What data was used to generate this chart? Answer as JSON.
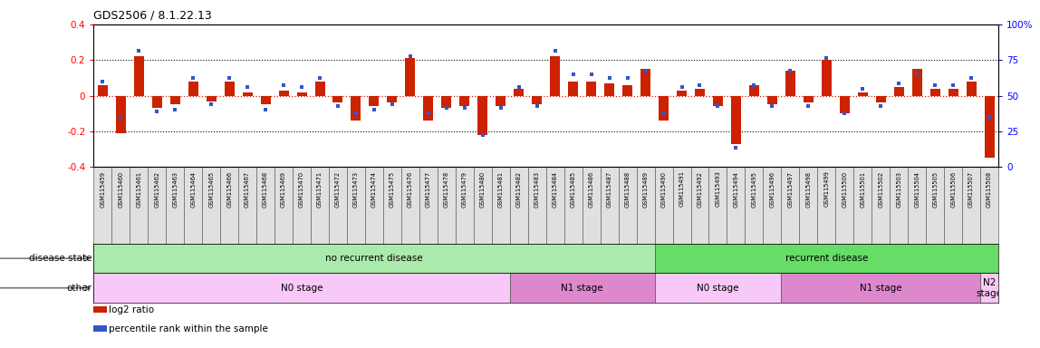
{
  "title": "GDS2506 / 8.1.22.13",
  "samples": [
    "GSM115459",
    "GSM115460",
    "GSM115461",
    "GSM115462",
    "GSM115463",
    "GSM115464",
    "GSM115465",
    "GSM115466",
    "GSM115467",
    "GSM115468",
    "GSM115469",
    "GSM115470",
    "GSM115471",
    "GSM115472",
    "GSM115473",
    "GSM115474",
    "GSM115475",
    "GSM115476",
    "GSM115477",
    "GSM115478",
    "GSM115479",
    "GSM115480",
    "GSM115481",
    "GSM115482",
    "GSM115483",
    "GSM115484",
    "GSM115485",
    "GSM115486",
    "GSM115487",
    "GSM115488",
    "GSM115489",
    "GSM115490",
    "GSM115491",
    "GSM115492",
    "GSM115493",
    "GSM115494",
    "GSM115495",
    "GSM115496",
    "GSM115497",
    "GSM115498",
    "GSM115499",
    "GSM115500",
    "GSM115501",
    "GSM115502",
    "GSM115503",
    "GSM115504",
    "GSM115505",
    "GSM115506",
    "GSM115507",
    "GSM115508"
  ],
  "log2_ratio": [
    0.06,
    -0.21,
    0.22,
    -0.07,
    -0.05,
    0.08,
    -0.03,
    0.08,
    0.02,
    -0.05,
    0.03,
    0.02,
    0.08,
    -0.04,
    -0.14,
    -0.06,
    -0.04,
    0.21,
    -0.14,
    -0.07,
    -0.06,
    -0.22,
    -0.06,
    0.04,
    -0.05,
    0.22,
    0.08,
    0.08,
    0.07,
    0.06,
    0.15,
    -0.14,
    0.03,
    0.04,
    -0.06,
    -0.27,
    0.06,
    -0.05,
    0.14,
    -0.04,
    0.2,
    -0.1,
    0.02,
    -0.04,
    0.05,
    0.15,
    0.04,
    0.04,
    0.08,
    -0.35
  ],
  "percentile_rank": [
    0.08,
    -0.12,
    0.25,
    -0.09,
    -0.08,
    0.1,
    -0.05,
    0.1,
    0.05,
    -0.08,
    0.06,
    0.05,
    0.1,
    -0.06,
    -0.1,
    -0.08,
    -0.05,
    0.22,
    -0.1,
    -0.07,
    -0.07,
    -0.22,
    -0.07,
    0.05,
    -0.06,
    0.25,
    0.12,
    0.12,
    0.1,
    0.1,
    0.14,
    -0.1,
    0.05,
    0.06,
    -0.06,
    -0.29,
    0.06,
    -0.06,
    0.14,
    -0.06,
    0.21,
    -0.1,
    0.04,
    -0.06,
    0.07,
    0.12,
    0.06,
    0.06,
    0.1,
    -0.12
  ],
  "ylim": [
    -0.4,
    0.4
  ],
  "yticks": [
    -0.4,
    -0.2,
    0.0,
    0.2,
    0.4
  ],
  "ytick_labels_left": [
    "-0.4",
    "-0.2",
    "0",
    "0.2",
    "0.4"
  ],
  "ytick_labels_right": [
    "0",
    "25",
    "50",
    "75",
    "100%"
  ],
  "bar_color": "#cc2200",
  "dot_color": "#3355cc",
  "bg_color": "#ffffff",
  "disease_state_segments": [
    {
      "label": "no recurrent disease",
      "start": 0,
      "end": 31,
      "color": "#aaeaaa"
    },
    {
      "label": "recurrent disease",
      "start": 31,
      "end": 50,
      "color": "#66dd66"
    }
  ],
  "other_segments": [
    {
      "label": "N0 stage",
      "start": 0,
      "end": 23,
      "color": "#f8c8f8"
    },
    {
      "label": "N1 stage",
      "start": 23,
      "end": 31,
      "color": "#dd88cc"
    },
    {
      "label": "N0 stage",
      "start": 31,
      "end": 38,
      "color": "#f8c8f8"
    },
    {
      "label": "N1 stage",
      "start": 38,
      "end": 49,
      "color": "#dd88cc"
    },
    {
      "label": "N2\nstage",
      "start": 49,
      "end": 50,
      "color": "#f8c8f8"
    }
  ],
  "disease_state_label": "disease state",
  "other_label": "other",
  "legend_items": [
    {
      "label": "log2 ratio",
      "color": "#cc2200"
    },
    {
      "label": "percentile rank within the sample",
      "color": "#3355cc"
    }
  ]
}
